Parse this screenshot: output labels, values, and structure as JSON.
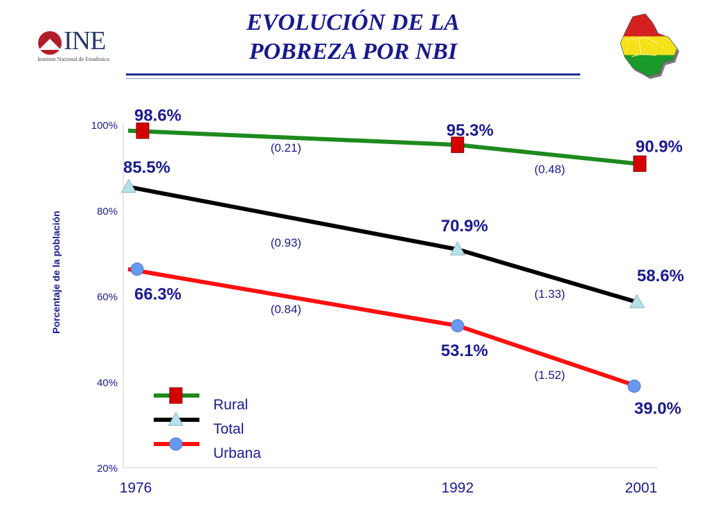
{
  "header": {
    "title_line1": "EVOLUCIÓN DE LA",
    "title_line2": "POBREZA POR NBI",
    "logo_text": "INE",
    "logo_subtitle": "Instituto Nacional de Estadística"
  },
  "colors": {
    "title": "#1a1a8c",
    "rural": "#1e8a1e",
    "total": "#000000",
    "urbana": "#ff1010",
    "marker_rural": "#d40000",
    "marker_total": "#b8e0e8",
    "marker_urbana": "#6a98ee",
    "label_blue": "#1a1a8c"
  },
  "chart_data": {
    "type": "line",
    "title": "EVOLUCIÓN DE LA POBREZA POR NBI",
    "ylabel": "Porcentaje de la población",
    "xlabel": "",
    "x": [
      1976,
      1992,
      2001
    ],
    "x_tick_labels": [
      "1976",
      "1992",
      "2001"
    ],
    "y_ticks": [
      20,
      40,
      60,
      80,
      100
    ],
    "y_tick_labels": [
      "20%",
      "40%",
      "60%",
      "80%",
      "100%"
    ],
    "ylim": [
      20,
      100
    ],
    "grid": false,
    "legend_position": "bottom-left",
    "series": [
      {
        "name": "Rural",
        "values": [
          98.6,
          95.3,
          90.9
        ],
        "value_labels": [
          "98.6%",
          "95.3%",
          "90.9%"
        ],
        "marker": "square",
        "rate_labels": [
          "(0.21)",
          "(0.48)"
        ]
      },
      {
        "name": "Total",
        "values": [
          85.5,
          70.9,
          58.6
        ],
        "value_labels": [
          "85.5%",
          "70.9%",
          "58.6%"
        ],
        "marker": "triangle",
        "rate_labels": [
          "(0.93)",
          "(1.33)"
        ]
      },
      {
        "name": "Urbana",
        "values": [
          66.3,
          53.1,
          39.0
        ],
        "value_labels": [
          "66.3%",
          "53.1%",
          "39.0%"
        ],
        "marker": "circle",
        "rate_labels": [
          "(0.84)",
          "(1.52)"
        ]
      }
    ]
  }
}
